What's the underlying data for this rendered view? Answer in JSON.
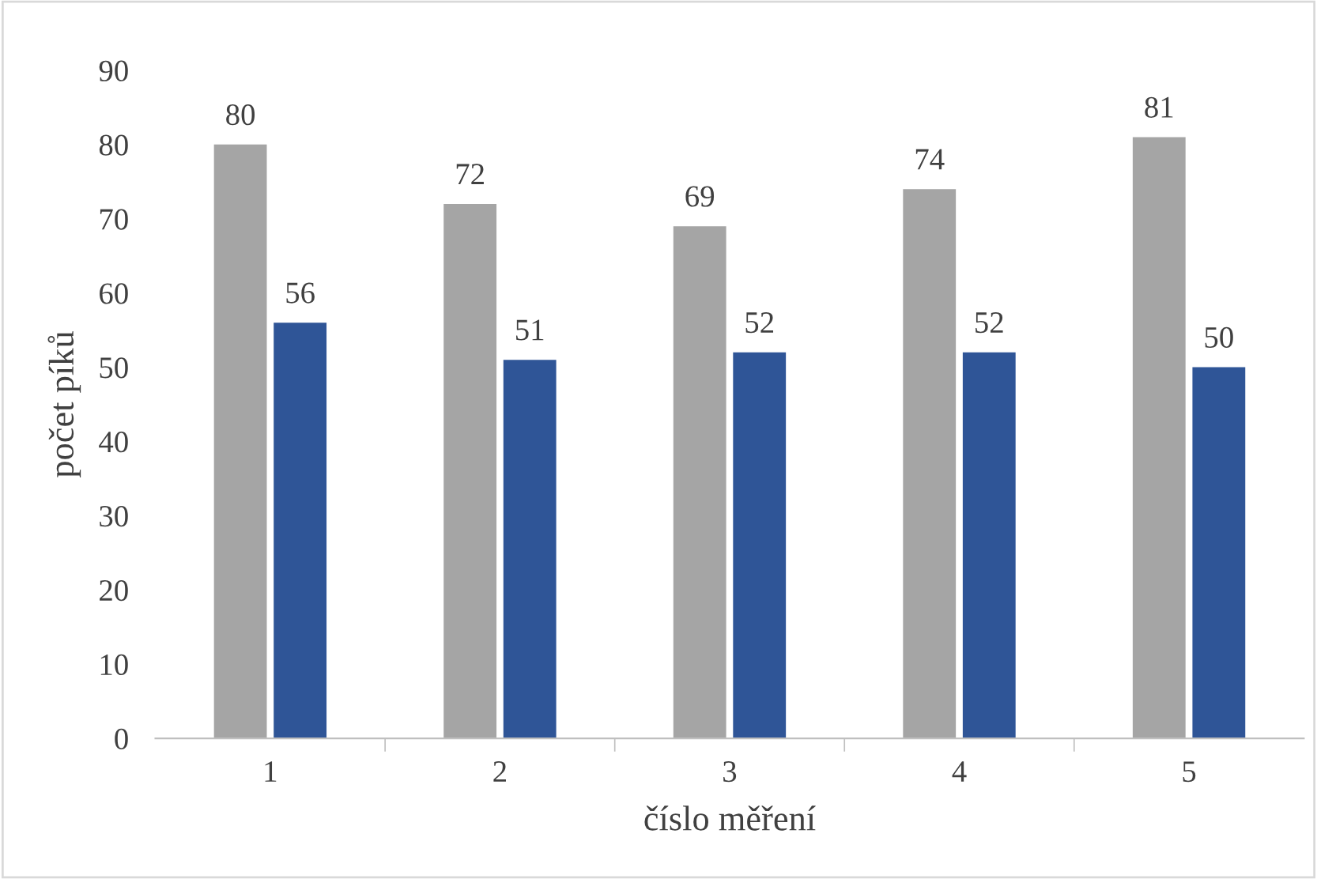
{
  "chart_data": {
    "type": "bar",
    "xlabel": "číslo měření",
    "ylabel": "počet píků",
    "categories": [
      "1",
      "2",
      "3",
      "4",
      "5"
    ],
    "series": [
      {
        "color": "#a5a5a5",
        "values": [
          80,
          72,
          69,
          74,
          81
        ]
      },
      {
        "color": "#2f5597",
        "values": [
          56,
          51,
          52,
          52,
          50
        ]
      }
    ],
    "ylim": [
      0,
      90
    ],
    "yticks": [
      0,
      10,
      20,
      30,
      40,
      50,
      60,
      70,
      80,
      90
    ],
    "grid": false,
    "data_labels": true
  }
}
